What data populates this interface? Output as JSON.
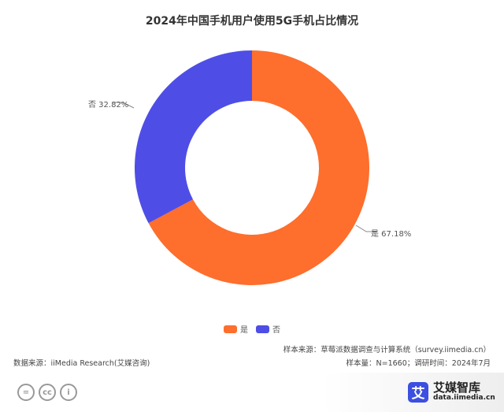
{
  "title": "2024年中国手机用户使用5G手机占比情况",
  "chart_data": {
    "type": "pie",
    "subtype": "donut",
    "title": "2024年中国手机用户使用5G手机占比情况",
    "categories": [
      "是",
      "否"
    ],
    "values": [
      67.18,
      32.82
    ],
    "colors": [
      "#fe6e2d",
      "#4e4ee6"
    ],
    "labels": [
      "是 67.18%",
      "否 32.82%"
    ],
    "legend_position": "bottom"
  },
  "legend": [
    {
      "label": "是",
      "color": "#fe6e2d"
    },
    {
      "label": "否",
      "color": "#4e4ee6"
    }
  ],
  "source": {
    "data_source": "数据来源：iiMedia Research(艾媒咨询)",
    "sample_source": "样本来源：草莓派数据调查与计算系统（survey.iimedia.cn）",
    "sample_info": "样本量：N=1660；调研时间：2024年7月"
  },
  "brand": {
    "logo_char": "艾",
    "name": "艾媒智库",
    "url": "data.iimedia.cn"
  },
  "license_icons": [
    "=",
    "cc",
    "i"
  ]
}
